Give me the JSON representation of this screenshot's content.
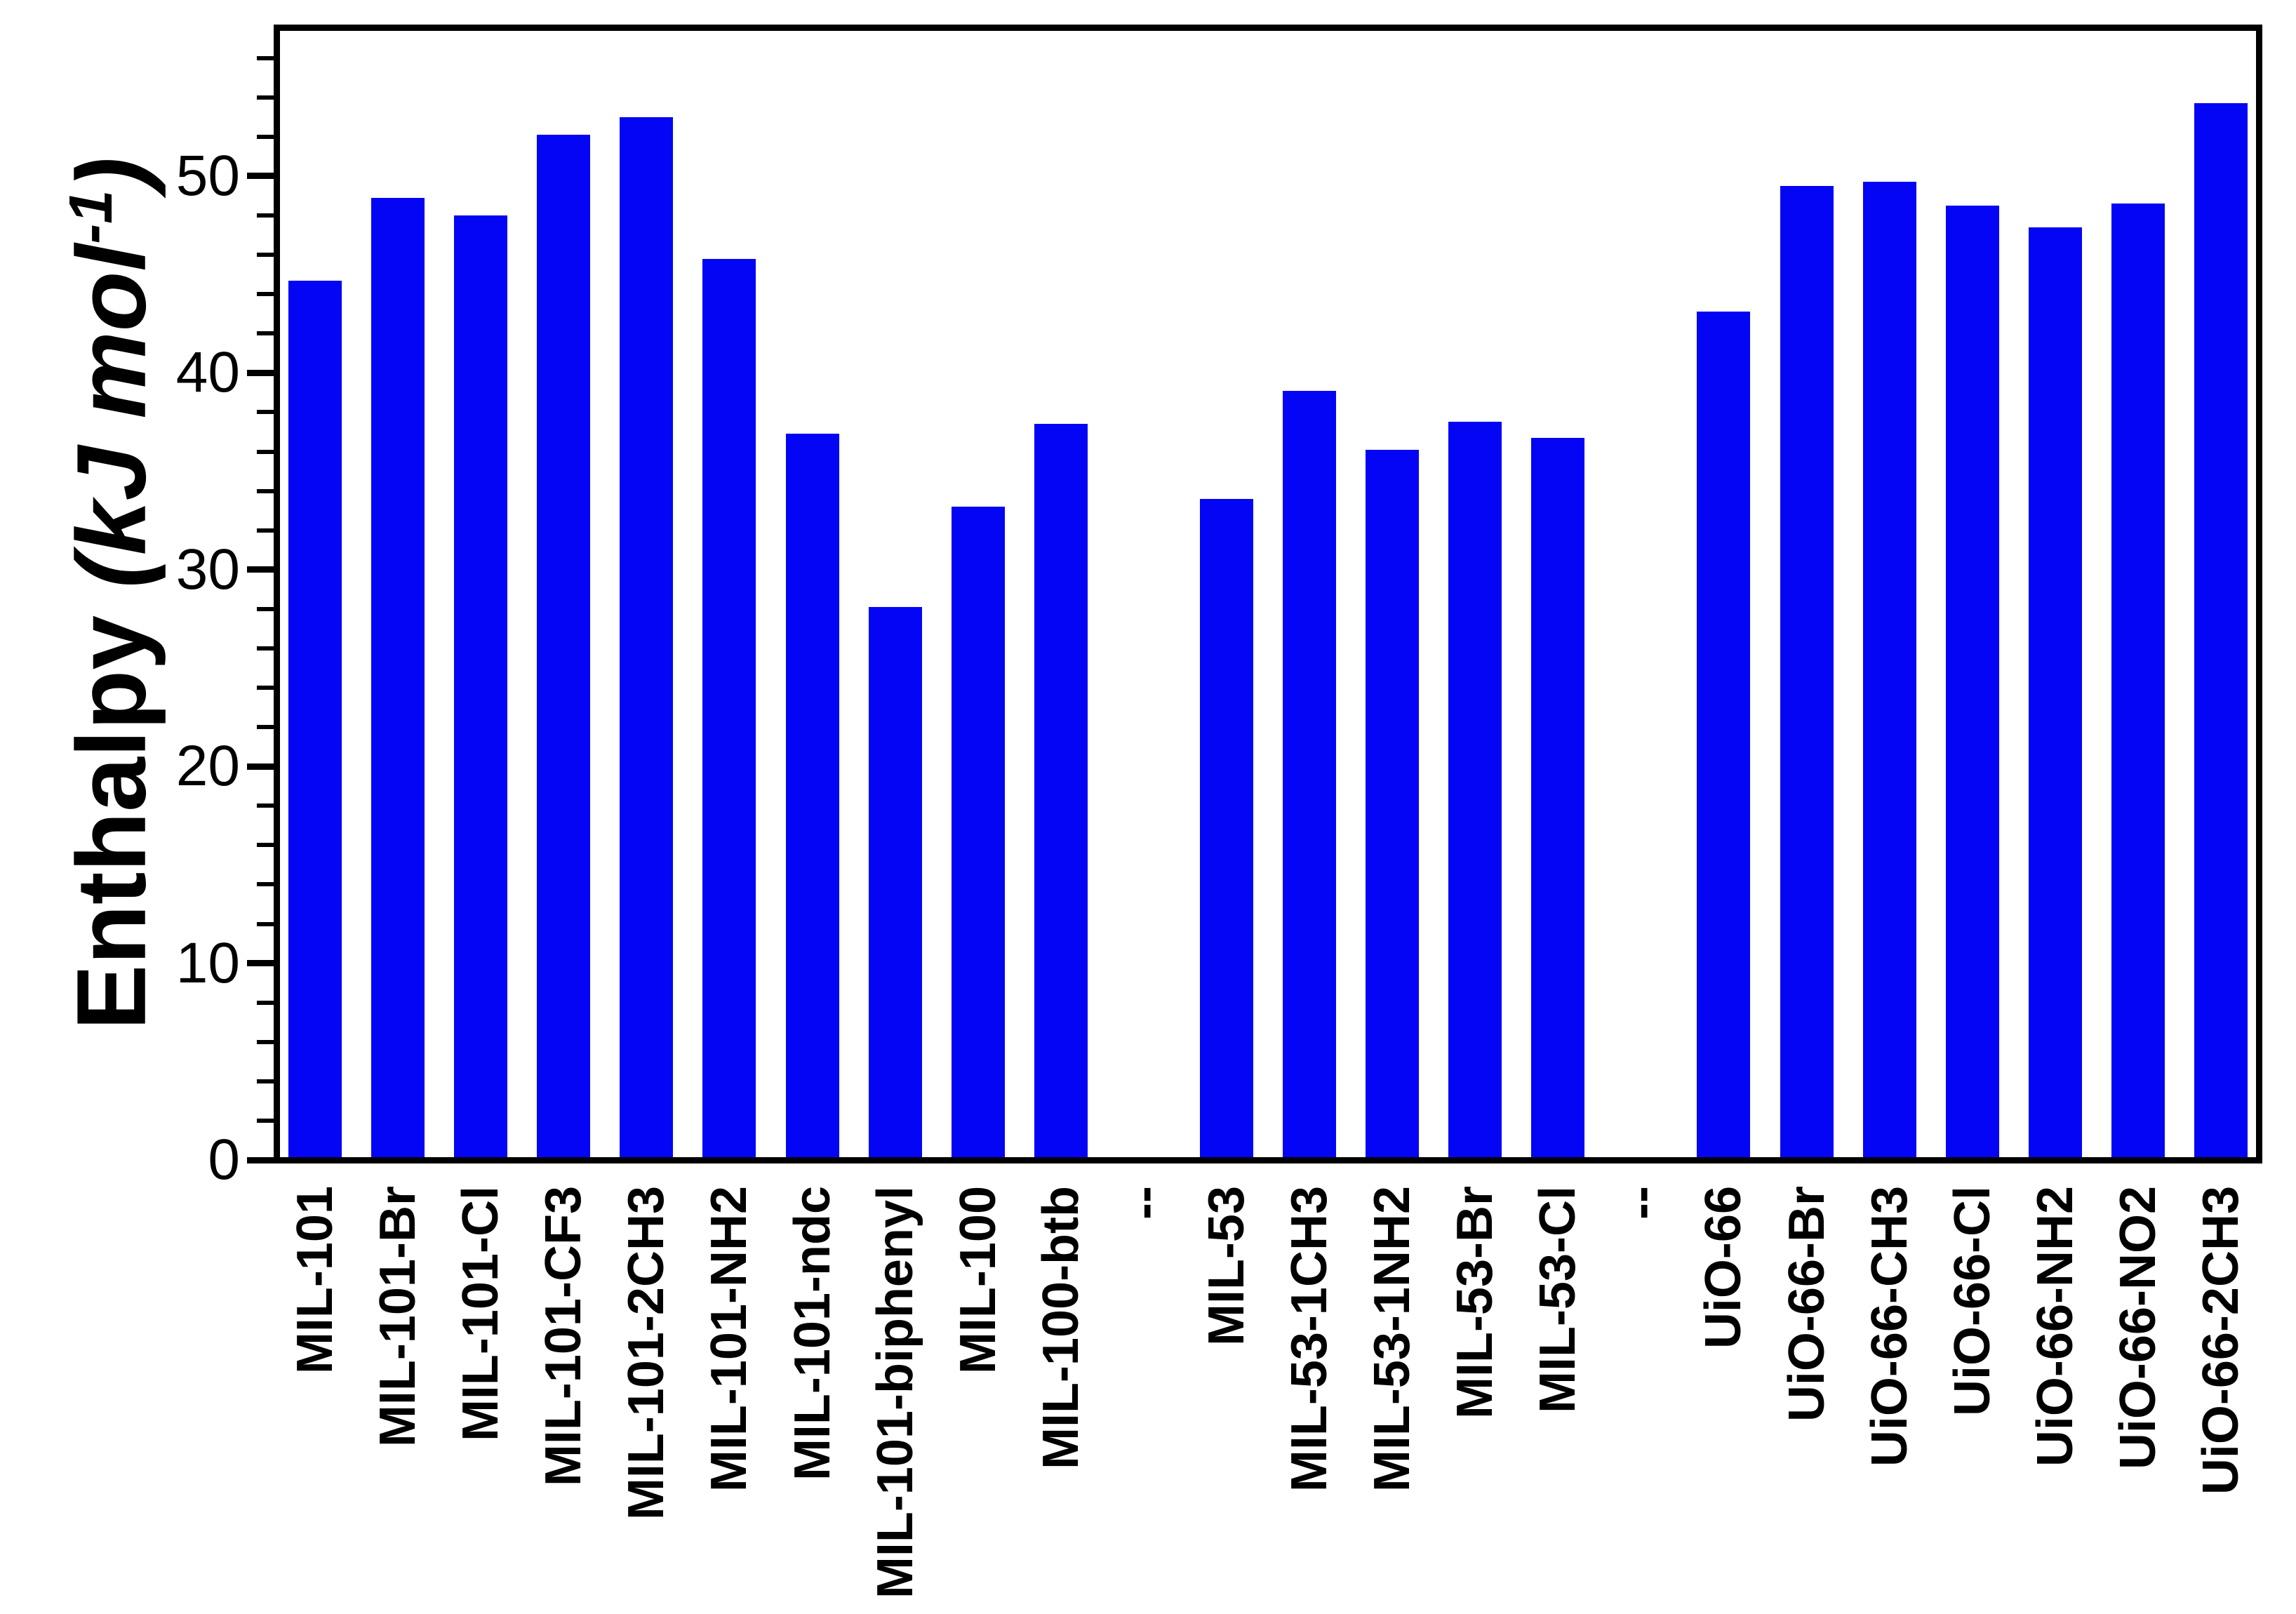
{
  "chart_data": {
    "type": "bar",
    "title": "",
    "xlabel": "",
    "ylabel": {
      "prefix": "Enthalpy ",
      "unit_italic": "(kJ mol",
      "superscript": "-1",
      "close_italic": ")"
    },
    "bar_color": "#0505f5",
    "axis_color": "#000000",
    "background": "#ffffff",
    "ylim": [
      0,
      57.7
    ],
    "y_major_step": 10,
    "y_minor_step": 2,
    "y_major_tick_labels": [
      "0",
      "10",
      "20",
      "30",
      "40",
      "50"
    ],
    "grid": false,
    "legend": false,
    "categories": [
      "MIL-101",
      "MIL-101-Br",
      "MIL-101-Cl",
      "MIL-101-CF3",
      "MIL-101-2CH3",
      "MIL-101-NH2",
      "MIL-101-ndc",
      "MIL-101-biphenyl",
      "MIL-100",
      "MIL-100-btb",
      "--",
      "MIL-53",
      "MIL-53-1CH3",
      "MIL-53-1NH2",
      "MIL-53-Br",
      "MIL-53-Cl",
      "--",
      "UiO-66",
      "UiO-66-Br",
      "UiO-66-CH3",
      "UiO-66-Cl",
      "UiO-66-NH2",
      "UiO-66-NO2",
      "UiO-66-2CH3"
    ],
    "values": [
      44.7,
      48.9,
      48.0,
      52.1,
      53.0,
      45.8,
      36.9,
      28.1,
      33.2,
      37.4,
      null,
      33.6,
      39.1,
      36.1,
      37.5,
      36.7,
      null,
      43.1,
      49.5,
      49.7,
      48.5,
      47.4,
      48.6,
      53.7
    ]
  }
}
